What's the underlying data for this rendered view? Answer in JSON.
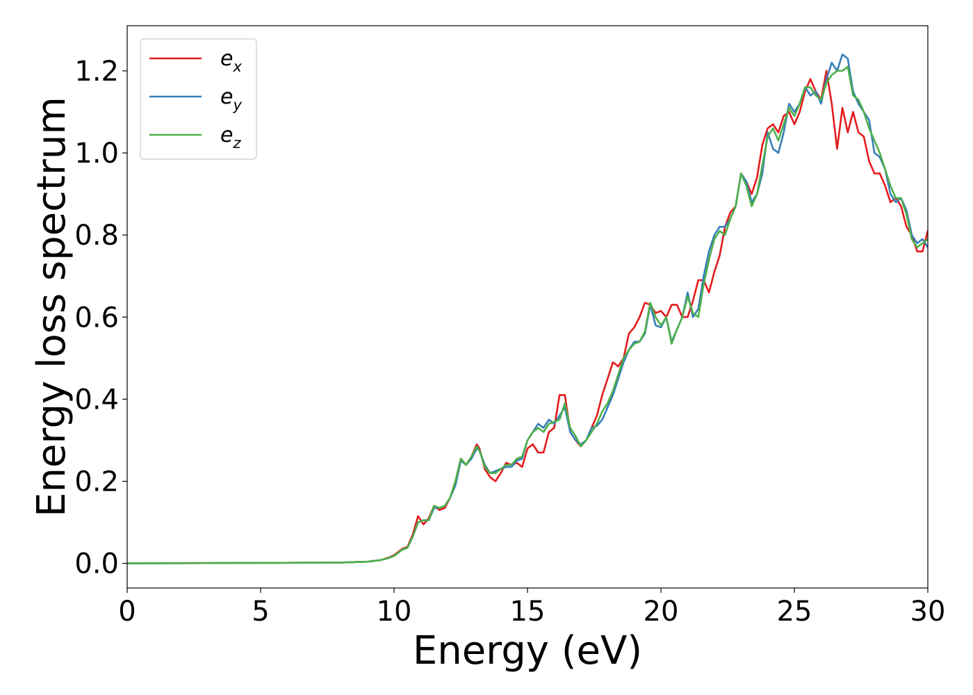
{
  "chart_data": {
    "type": "line",
    "xlabel": "Energy (eV)",
    "ylabel": "Energy loss spectrum",
    "xlim": [
      0,
      30
    ],
    "ylim": [
      -0.06,
      1.31
    ],
    "xticks": [
      0,
      5,
      10,
      15,
      20,
      25,
      30
    ],
    "yticks": [
      0.0,
      0.2,
      0.4,
      0.6,
      0.8,
      1.0,
      1.2
    ],
    "xtick_labels": [
      "0",
      "5",
      "10",
      "15",
      "20",
      "25",
      "30"
    ],
    "ytick_labels": [
      "0.0",
      "0.2",
      "0.4",
      "0.6",
      "0.8",
      "1.0",
      "1.2"
    ],
    "grid": false,
    "legend_position": "top-left",
    "series": [
      {
        "name": "e_x",
        "legend_base": "e",
        "legend_sub": "x",
        "color": "#e41a1c",
        "x": [
          0,
          5,
          8,
          9,
          9.5,
          9.8,
          10,
          10.3,
          10.5,
          10.7,
          10.9,
          11.1,
          11.3,
          11.5,
          11.7,
          11.9,
          12.1,
          12.3,
          12.5,
          12.7,
          12.9,
          13.1,
          13.2,
          13.4,
          13.6,
          13.8,
          14.0,
          14.2,
          14.4,
          14.6,
          14.8,
          15.0,
          15.2,
          15.4,
          15.6,
          15.8,
          16.0,
          16.2,
          16.4,
          16.6,
          16.8,
          17.0,
          17.2,
          17.4,
          17.6,
          17.8,
          18.0,
          18.2,
          18.4,
          18.6,
          18.8,
          19.0,
          19.2,
          19.4,
          19.6,
          19.8,
          20.0,
          20.2,
          20.4,
          20.6,
          20.8,
          21.0,
          21.2,
          21.4,
          21.6,
          21.8,
          22.0,
          22.2,
          22.4,
          22.6,
          22.8,
          23.0,
          23.2,
          23.4,
          23.6,
          23.8,
          24.0,
          24.2,
          24.4,
          24.6,
          24.8,
          25.0,
          25.2,
          25.4,
          25.6,
          25.8,
          26.0,
          26.2,
          26.4,
          26.6,
          26.8,
          27.0,
          27.2,
          27.4,
          27.6,
          27.8,
          28.0,
          28.2,
          28.4,
          28.6,
          28.8,
          29.0,
          29.2,
          29.4,
          29.6,
          29.8,
          30.0
        ],
        "y": [
          0.0,
          0.001,
          0.002,
          0.004,
          0.008,
          0.014,
          0.02,
          0.035,
          0.04,
          0.07,
          0.115,
          0.095,
          0.11,
          0.14,
          0.13,
          0.135,
          0.16,
          0.2,
          0.255,
          0.24,
          0.26,
          0.29,
          0.28,
          0.23,
          0.21,
          0.2,
          0.22,
          0.245,
          0.24,
          0.245,
          0.235,
          0.28,
          0.29,
          0.27,
          0.27,
          0.32,
          0.33,
          0.41,
          0.41,
          0.32,
          0.3,
          0.285,
          0.3,
          0.33,
          0.36,
          0.41,
          0.45,
          0.49,
          0.48,
          0.5,
          0.56,
          0.575,
          0.6,
          0.635,
          0.63,
          0.61,
          0.615,
          0.6,
          0.63,
          0.63,
          0.6,
          0.6,
          0.64,
          0.69,
          0.69,
          0.66,
          0.71,
          0.75,
          0.82,
          0.855,
          0.87,
          0.95,
          0.93,
          0.9,
          0.94,
          1.02,
          1.06,
          1.07,
          1.05,
          1.09,
          1.1,
          1.07,
          1.1,
          1.15,
          1.18,
          1.15,
          1.13,
          1.2,
          1.12,
          1.01,
          1.11,
          1.05,
          1.1,
          1.05,
          1.04,
          0.98,
          0.95,
          0.95,
          0.92,
          0.88,
          0.89,
          0.87,
          0.82,
          0.8,
          0.76,
          0.76,
          0.81
        ]
      },
      {
        "name": "e_y",
        "legend_base": "e",
        "legend_sub": "y",
        "color": "#377eb8",
        "x": [
          0,
          5,
          8,
          9,
          9.5,
          9.8,
          10,
          10.3,
          10.5,
          10.7,
          10.9,
          11.1,
          11.3,
          11.5,
          11.7,
          11.9,
          12.1,
          12.3,
          12.5,
          12.7,
          12.9,
          13.1,
          13.2,
          13.4,
          13.6,
          13.8,
          14.0,
          14.2,
          14.4,
          14.6,
          14.8,
          15.0,
          15.2,
          15.4,
          15.6,
          15.8,
          16.0,
          16.2,
          16.4,
          16.6,
          16.8,
          17.0,
          17.2,
          17.4,
          17.6,
          17.8,
          18.0,
          18.2,
          18.4,
          18.6,
          18.8,
          19.0,
          19.2,
          19.4,
          19.6,
          19.8,
          20.0,
          20.2,
          20.4,
          20.6,
          20.8,
          21.0,
          21.2,
          21.4,
          21.6,
          21.8,
          22.0,
          22.2,
          22.4,
          22.6,
          22.8,
          23.0,
          23.2,
          23.4,
          23.6,
          23.8,
          24.0,
          24.2,
          24.4,
          24.6,
          24.8,
          25.0,
          25.2,
          25.4,
          25.6,
          25.8,
          26.0,
          26.2,
          26.4,
          26.6,
          26.8,
          27.0,
          27.2,
          27.4,
          27.6,
          27.8,
          28.0,
          28.2,
          28.4,
          28.6,
          28.8,
          29.0,
          29.2,
          29.4,
          29.6,
          29.8,
          30.0
        ],
        "y": [
          0.0,
          0.001,
          0.002,
          0.004,
          0.008,
          0.013,
          0.018,
          0.033,
          0.038,
          0.065,
          0.1,
          0.105,
          0.105,
          0.135,
          0.135,
          0.14,
          0.16,
          0.19,
          0.25,
          0.24,
          0.255,
          0.28,
          0.275,
          0.24,
          0.22,
          0.225,
          0.23,
          0.235,
          0.235,
          0.25,
          0.255,
          0.3,
          0.32,
          0.34,
          0.33,
          0.35,
          0.34,
          0.36,
          0.38,
          0.32,
          0.3,
          0.29,
          0.3,
          0.33,
          0.335,
          0.35,
          0.38,
          0.41,
          0.45,
          0.49,
          0.52,
          0.54,
          0.54,
          0.56,
          0.63,
          0.58,
          0.575,
          0.6,
          0.54,
          0.57,
          0.6,
          0.66,
          0.6,
          0.62,
          0.7,
          0.76,
          0.8,
          0.82,
          0.82,
          0.84,
          0.87,
          0.95,
          0.93,
          0.88,
          0.9,
          0.95,
          1.05,
          1.01,
          1.0,
          1.05,
          1.12,
          1.1,
          1.12,
          1.16,
          1.14,
          1.15,
          1.12,
          1.18,
          1.22,
          1.2,
          1.24,
          1.23,
          1.15,
          1.12,
          1.1,
          1.08,
          1.0,
          0.99,
          0.96,
          0.9,
          0.88,
          0.89,
          0.86,
          0.8,
          0.78,
          0.79,
          0.77
        ]
      },
      {
        "name": "e_z",
        "legend_base": "e",
        "legend_sub": "z",
        "color": "#4daf4a",
        "x": [
          0,
          5,
          8,
          9,
          9.5,
          9.8,
          10,
          10.3,
          10.5,
          10.7,
          10.9,
          11.1,
          11.3,
          11.5,
          11.7,
          11.9,
          12.1,
          12.3,
          12.5,
          12.7,
          12.9,
          13.1,
          13.2,
          13.4,
          13.6,
          13.8,
          14.0,
          14.2,
          14.4,
          14.6,
          14.8,
          15.0,
          15.2,
          15.4,
          15.6,
          15.8,
          16.0,
          16.2,
          16.4,
          16.6,
          16.8,
          17.0,
          17.2,
          17.4,
          17.6,
          17.8,
          18.0,
          18.2,
          18.4,
          18.6,
          18.8,
          19.0,
          19.2,
          19.4,
          19.6,
          19.8,
          20.0,
          20.2,
          20.4,
          20.6,
          20.8,
          21.0,
          21.2,
          21.4,
          21.6,
          21.8,
          22.0,
          22.2,
          22.4,
          22.6,
          22.8,
          23.0,
          23.2,
          23.4,
          23.6,
          23.8,
          24.0,
          24.2,
          24.4,
          24.6,
          24.8,
          25.0,
          25.2,
          25.4,
          25.6,
          25.8,
          26.0,
          26.2,
          26.4,
          26.6,
          26.8,
          27.0,
          27.2,
          27.4,
          27.6,
          27.8,
          28.0,
          28.2,
          28.4,
          28.6,
          28.8,
          29.0,
          29.2,
          29.4,
          29.6,
          29.8,
          30.0
        ],
        "y": [
          0.0,
          0.001,
          0.002,
          0.004,
          0.008,
          0.013,
          0.018,
          0.033,
          0.038,
          0.065,
          0.1,
          0.105,
          0.105,
          0.14,
          0.135,
          0.14,
          0.16,
          0.2,
          0.255,
          0.24,
          0.26,
          0.285,
          0.275,
          0.235,
          0.22,
          0.22,
          0.23,
          0.24,
          0.24,
          0.255,
          0.26,
          0.3,
          0.32,
          0.33,
          0.32,
          0.34,
          0.345,
          0.35,
          0.39,
          0.33,
          0.31,
          0.285,
          0.3,
          0.32,
          0.34,
          0.37,
          0.39,
          0.42,
          0.46,
          0.5,
          0.52,
          0.535,
          0.54,
          0.565,
          0.635,
          0.6,
          0.58,
          0.6,
          0.535,
          0.57,
          0.6,
          0.65,
          0.61,
          0.6,
          0.68,
          0.74,
          0.79,
          0.81,
          0.8,
          0.84,
          0.87,
          0.95,
          0.92,
          0.87,
          0.9,
          0.97,
          1.04,
          1.06,
          1.03,
          1.07,
          1.11,
          1.09,
          1.12,
          1.16,
          1.16,
          1.14,
          1.13,
          1.17,
          1.19,
          1.2,
          1.2,
          1.21,
          1.14,
          1.13,
          1.1,
          1.06,
          1.03,
          1.0,
          0.96,
          0.92,
          0.89,
          0.89,
          0.85,
          0.79,
          0.77,
          0.78,
          0.79
        ]
      }
    ]
  }
}
